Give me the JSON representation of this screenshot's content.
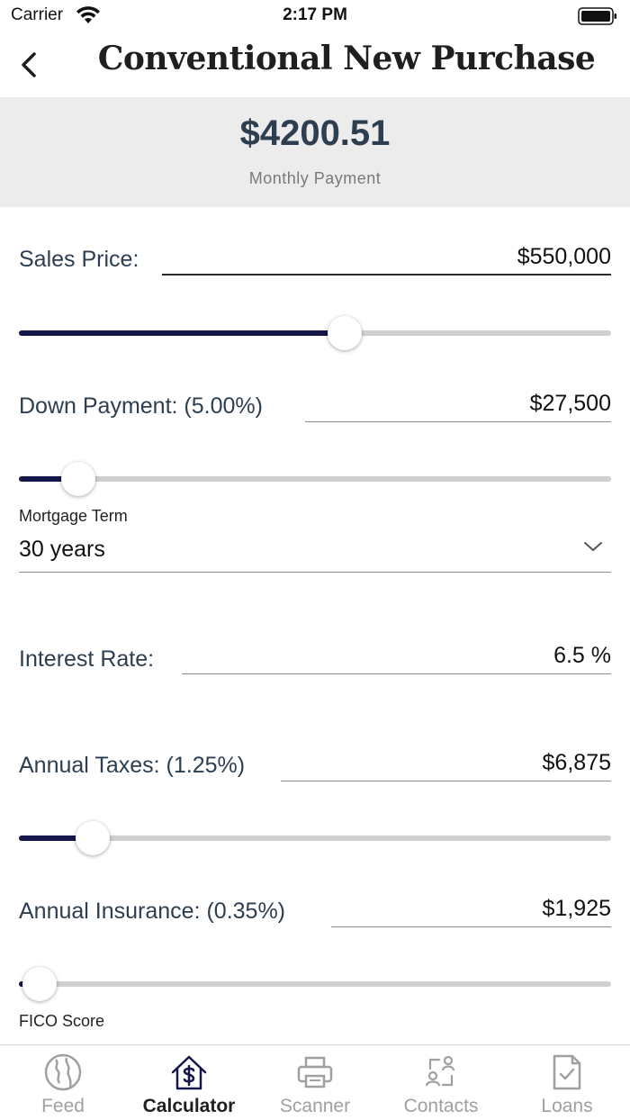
{
  "status_bar": {
    "carrier": "Carrier",
    "time": "2:17 PM"
  },
  "nav": {
    "title": "Conventional New Purchase"
  },
  "summary": {
    "amount": "$4200.51",
    "label": "Monthly Payment"
  },
  "form": {
    "sales_price": {
      "label": "Sales Price:",
      "value": "$550,000",
      "slider_fraction": 0.55
    },
    "down_payment": {
      "label": "Down Payment: (5.00%)",
      "value": "$27,500",
      "slider_fraction": 0.1
    },
    "mortgage_term": {
      "label": "Mortgage Term",
      "value": "30 years"
    },
    "interest_rate": {
      "label": "Interest Rate:",
      "value": "6.5 %"
    },
    "annual_taxes": {
      "label": "Annual Taxes: (1.25%)",
      "value": "$6,875",
      "slider_fraction": 0.125
    },
    "annual_insurance": {
      "label": "Annual Insurance: (0.35%)",
      "value": "$1,925",
      "slider_fraction": 0.035
    },
    "fico_score": {
      "label": "FICO Score"
    }
  },
  "tabs": [
    {
      "label": "Feed",
      "icon": "globe-icon",
      "active": false
    },
    {
      "label": "Calculator",
      "icon": "house-dollar-icon",
      "active": true
    },
    {
      "label": "Scanner",
      "icon": "printer-icon",
      "active": false
    },
    {
      "label": "Contacts",
      "icon": "contacts-icon",
      "active": false
    },
    {
      "label": "Loans",
      "icon": "document-check-icon",
      "active": false
    }
  ],
  "colors": {
    "accent": "#15164a",
    "label_text": "#2c3e50",
    "summary_bg": "#ececec",
    "inactive_tab": "#a0a0a0"
  }
}
